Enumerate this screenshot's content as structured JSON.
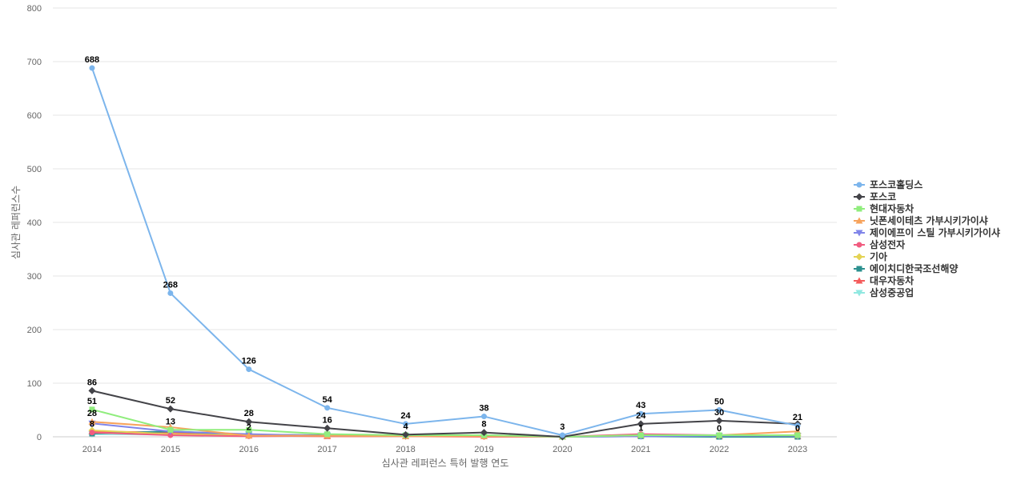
{
  "chart_data": {
    "type": "line",
    "title": "",
    "xlabel": "심사관 레퍼런스 특허 발행 연도",
    "ylabel": "심사관 레퍼런스수",
    "ylim": [
      0,
      800
    ],
    "yticks": [
      0,
      100,
      200,
      300,
      400,
      500,
      600,
      700,
      800
    ],
    "categories": [
      "2014",
      "2015",
      "2016",
      "2017",
      "2018",
      "2019",
      "2020",
      "2021",
      "2022",
      "2023"
    ],
    "grid": true,
    "legend_position": "right",
    "series": [
      {
        "name": "포스코홀딩스",
        "color": "#7cb5ec",
        "marker": "circle",
        "values": [
          688,
          268,
          126,
          54,
          24,
          38,
          3,
          43,
          50,
          21
        ],
        "labels": [
          "688",
          "268",
          "126",
          "54",
          "24",
          "38",
          "3",
          "43",
          "50",
          "21"
        ]
      },
      {
        "name": "포스코",
        "color": "#434348",
        "marker": "diamond",
        "values": [
          86,
          52,
          28,
          16,
          4,
          8,
          0,
          24,
          30,
          24
        ],
        "labels": [
          "86",
          "52",
          "28",
          "16",
          "4",
          "8",
          "",
          "24",
          "30",
          ""
        ]
      },
      {
        "name": "현대자동차",
        "color": "#90ed7d",
        "marker": "square",
        "values": [
          51,
          13,
          13,
          5,
          3,
          3,
          0,
          3,
          3,
          3
        ],
        "labels": [
          "51",
          "13",
          "",
          "",
          "",
          "",
          "",
          "",
          "",
          ""
        ]
      },
      {
        "name": "닛폰세이테츠 가부시키가이샤",
        "color": "#f7a35c",
        "marker": "triangle",
        "values": [
          28,
          18,
          2,
          2,
          1,
          1,
          0,
          3,
          3,
          10
        ],
        "labels": [
          "28",
          "",
          "2",
          "",
          "",
          "",
          "",
          "",
          "",
          ""
        ]
      },
      {
        "name": "제이에프이 스틸 가부시키가이샤",
        "color": "#8085e9",
        "marker": "triangle-down",
        "values": [
          25,
          10,
          5,
          2,
          1,
          2,
          0,
          1,
          2,
          2
        ],
        "labels": [
          "",
          "",
          "",
          "",
          "",
          "",
          "",
          "",
          "",
          ""
        ]
      },
      {
        "name": "삼성전자",
        "color": "#f15c80",
        "marker": "circle",
        "values": [
          8,
          3,
          1,
          2,
          1,
          0,
          0,
          5,
          3,
          2
        ],
        "labels": [
          "8",
          "",
          "",
          "",
          "",
          "",
          "",
          "",
          "",
          ""
        ]
      },
      {
        "name": "기아",
        "color": "#e4d354",
        "marker": "diamond",
        "values": [
          12,
          5,
          3,
          2,
          1,
          1,
          0,
          2,
          2,
          2
        ],
        "labels": [
          "",
          "",
          "",
          "",
          "",
          "",
          "",
          "",
          "",
          ""
        ]
      },
      {
        "name": "에이치디한국조선해양",
        "color": "#2b908f",
        "marker": "square",
        "values": [
          6,
          10,
          4,
          3,
          2,
          2,
          0,
          1,
          0,
          0
        ],
        "labels": [
          "",
          "",
          "",
          "",
          "",
          "",
          "",
          "1",
          "0",
          "0"
        ]
      },
      {
        "name": "대우자동차",
        "color": "#f45b5b",
        "marker": "triangle",
        "values": [
          10,
          8,
          2,
          1,
          1,
          1,
          0,
          2,
          1,
          1
        ],
        "labels": [
          "",
          "",
          "",
          "",
          "",
          "",
          "",
          "",
          "",
          ""
        ]
      },
      {
        "name": "삼성중공업",
        "color": "#91e8e1",
        "marker": "triangle-down",
        "values": [
          5,
          4,
          3,
          3,
          2,
          3,
          0,
          3,
          2,
          2
        ],
        "labels": [
          "",
          "",
          "",
          "",
          "",
          "",
          "",
          "",
          "",
          ""
        ]
      }
    ]
  }
}
